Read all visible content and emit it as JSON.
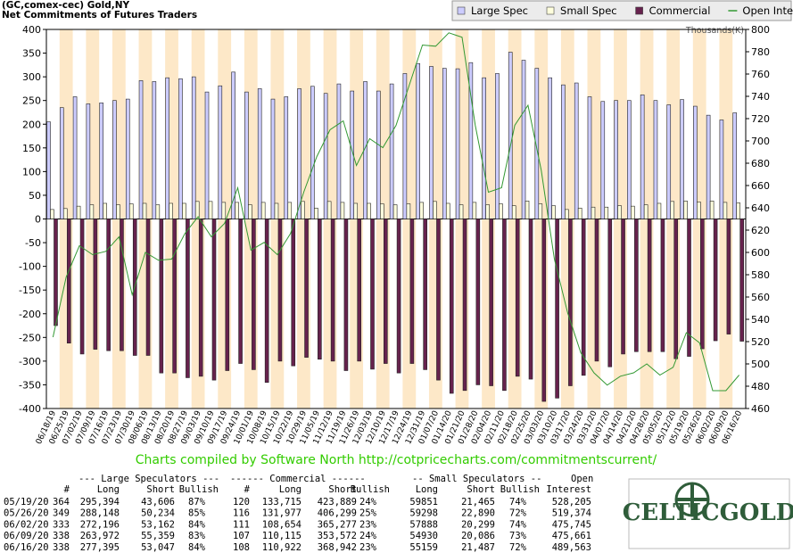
{
  "chart_data": {
    "type": "bar",
    "title": "(GC,comex-cec) Gold,NY",
    "subtitle": "Net Commitments of Futures Traders",
    "y2label": "Thousands(K)",
    "categories": [
      "06/18/19",
      "06/25/19",
      "07/02/19",
      "07/09/19",
      "07/16/19",
      "07/23/19",
      "07/30/19",
      "08/06/19",
      "08/13/19",
      "08/20/19",
      "08/27/19",
      "09/03/19",
      "09/10/19",
      "09/17/19",
      "09/24/19",
      "10/01/19",
      "10/08/19",
      "10/15/19",
      "10/22/19",
      "10/29/19",
      "11/05/19",
      "11/12/19",
      "11/19/19",
      "11/26/19",
      "12/03/19",
      "12/10/19",
      "12/17/19",
      "12/24/19",
      "12/31/19",
      "01/07/20",
      "01/14/20",
      "01/21/20",
      "01/28/20",
      "02/04/20",
      "02/11/20",
      "02/18/20",
      "02/25/20",
      "03/03/20",
      "03/10/20",
      "03/17/20",
      "03/24/20",
      "03/31/20",
      "04/07/20",
      "04/14/20",
      "04/21/20",
      "04/28/20",
      "05/05/20",
      "05/12/20",
      "05/19/20",
      "05/26/20",
      "06/02/20",
      "06/09/20",
      "06/16/20"
    ],
    "series": [
      {
        "name": "Large Spec",
        "color": "#ccccff",
        "values": [
          205,
          235,
          258,
          243,
          245,
          250,
          253,
          292,
          290,
          298,
          296,
          300,
          268,
          281,
          310,
          268,
          275,
          253,
          258,
          275,
          280,
          265,
          285,
          270,
          290,
          270,
          285,
          307,
          328,
          322,
          318,
          317,
          330,
          298,
          307,
          352,
          335,
          318,
          298,
          283,
          287,
          258,
          248,
          250,
          250,
          262,
          250,
          241,
          252,
          238,
          219,
          209,
          224
        ]
      },
      {
        "name": "Small Spec",
        "color": "#ffffdd",
        "values": [
          20,
          22,
          27,
          30,
          33,
          30,
          32,
          33,
          30,
          33,
          33,
          37,
          37,
          35,
          35,
          30,
          35,
          33,
          35,
          37,
          23,
          37,
          35,
          33,
          33,
          32,
          30,
          32,
          35,
          37,
          33,
          30,
          35,
          30,
          32,
          28,
          38,
          32,
          28,
          20,
          23,
          25,
          25,
          28,
          27,
          30,
          33,
          37,
          38,
          36,
          38,
          35,
          34
        ]
      },
      {
        "name": "Commercial",
        "color": "#66224d",
        "values": [
          -225,
          -262,
          -285,
          -275,
          -278,
          -278,
          -288,
          -288,
          -325,
          -325,
          -335,
          -332,
          -340,
          -320,
          -305,
          -318,
          -345,
          -300,
          -310,
          -292,
          -296,
          -300,
          -320,
          -300,
          -317,
          -305,
          -325,
          -305,
          -318,
          -340,
          -368,
          -362,
          -350,
          -352,
          -362,
          -332,
          -338,
          -385,
          -378,
          -352,
          -330,
          -300,
          -312,
          -285,
          -280,
          -280,
          -280,
          -295,
          -290,
          -274,
          -257,
          -243,
          -258
        ]
      },
      {
        "name": "Open Interest",
        "color": "#339933",
        "axis": "y2",
        "type": "line",
        "values": [
          524,
          578,
          606,
          598,
          601,
          614,
          562,
          600,
          593,
          594,
          617,
          632,
          614,
          626,
          658,
          602,
          609,
          598,
          617,
          654,
          686,
          710,
          718,
          678,
          702,
          694,
          714,
          750,
          786,
          785,
          797,
          793,
          714,
          654,
          658,
          714,
          732,
          674,
          594,
          546,
          510,
          492,
          481,
          489,
          492,
          500,
          490,
          497,
          528,
          519,
          476,
          476,
          490
        ]
      }
    ],
    "ylim": [
      -400,
      400
    ],
    "yticks": [
      -400,
      -350,
      -300,
      -250,
      -200,
      -150,
      -100,
      -50,
      0,
      50,
      100,
      150,
      200,
      250,
      300,
      350,
      400
    ],
    "y2lim": [
      460,
      800
    ],
    "y2ticks": [
      460,
      480,
      500,
      520,
      540,
      560,
      580,
      600,
      620,
      640,
      660,
      680,
      700,
      720,
      740,
      760,
      780,
      800
    ],
    "legend": "top-right"
  },
  "footer": "Charts compiled by Software North  http://cotpricecharts.com/commitmentscurrent/",
  "table": {
    "groups": [
      "--- Large Speculators ---",
      "------ Commercial ------",
      "-- Small Speculators --",
      "Open"
    ],
    "columns": [
      "#",
      "Long",
      "Short",
      "Bullish",
      "#",
      "Long",
      "Short",
      "Bullish",
      "Long",
      "Short",
      "Bullish",
      "Interest"
    ],
    "rows": [
      [
        "05/19/20",
        "364",
        "295,394",
        "43,606",
        "87%",
        "120",
        "133,715",
        "423,889",
        "24%",
        "59851",
        "21,465",
        "74%",
        "528,205"
      ],
      [
        "05/26/20",
        "349",
        "288,148",
        "50,234",
        "85%",
        "116",
        "131,977",
        "406,299",
        "25%",
        "59298",
        "22,890",
        "72%",
        "519,374"
      ],
      [
        "06/02/20",
        "333",
        "272,196",
        "53,162",
        "84%",
        "111",
        "108,654",
        "365,277",
        "23%",
        "57888",
        "20,299",
        "74%",
        "475,745"
      ],
      [
        "06/09/20",
        "338",
        "263,972",
        "55,359",
        "83%",
        "107",
        "110,115",
        "353,572",
        "24%",
        "54930",
        "20,086",
        "73%",
        "475,661"
      ],
      [
        "06/16/20",
        "338",
        "277,395",
        "53,047",
        "84%",
        "108",
        "110,922",
        "368,942",
        "23%",
        "55159",
        "21,487",
        "72%",
        "489,563"
      ]
    ]
  },
  "logo": "CELTICGOLD"
}
